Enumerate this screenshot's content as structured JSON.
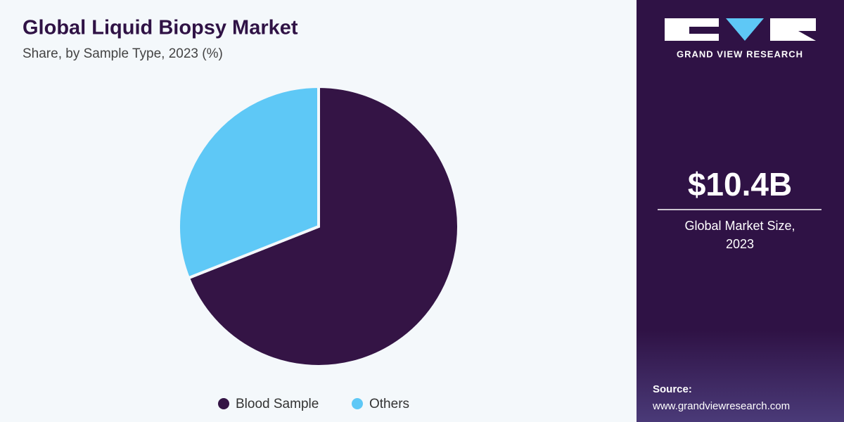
{
  "chart_data": {
    "type": "pie",
    "title": "Global Liquid Biopsy Market",
    "subtitle": "Share, by Sample Type, 2023 (%)",
    "categories": [
      "Blood Sample",
      "Others"
    ],
    "values": [
      69,
      31
    ],
    "colors": [
      "#341445",
      "#5ec8f6"
    ]
  },
  "sidebar": {
    "brand": "GRAND VIEW RESEARCH",
    "market_value": "$10.4B",
    "market_label": [
      "Global Market Size,",
      "2023"
    ],
    "source_label": "Source:",
    "source_url": "www.grandviewresearch.com"
  }
}
